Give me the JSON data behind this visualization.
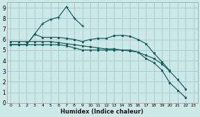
{
  "background_color": "#cce8e8",
  "grid_color": "#aacccc",
  "line_color": "#1a6060",
  "xlabel": "Humidex (Indice chaleur)",
  "xlim": [
    -0.5,
    23.5
  ],
  "ylim": [
    0,
    9.5
  ],
  "xticks": [
    0,
    1,
    2,
    3,
    4,
    5,
    6,
    7,
    8,
    9,
    10,
    11,
    12,
    13,
    14,
    15,
    16,
    17,
    18,
    19,
    20,
    21,
    22,
    23
  ],
  "yticks": [
    0,
    1,
    2,
    3,
    4,
    5,
    6,
    7,
    8,
    9
  ],
  "series": [
    {
      "x": [
        0,
        1,
        2,
        3,
        4,
        5,
        6,
        7,
        8,
        9,
        10,
        11,
        12,
        13,
        14,
        15,
        16,
        17,
        18,
        19,
        20,
        21,
        22
      ],
      "y": [
        5.8,
        5.8,
        5.8,
        5.8,
        5.8,
        5.8,
        5.7,
        5.6,
        5.5,
        5.4,
        5.3,
        5.2,
        5.1,
        5.1,
        5.0,
        4.9,
        4.8,
        4.5,
        4.2,
        3.7,
        3.0,
        2.2,
        1.3
      ],
      "marker": "s"
    },
    {
      "x": [
        0,
        1,
        2,
        3,
        4,
        5,
        6,
        7,
        8,
        9,
        10,
        11,
        12,
        13,
        14,
        15,
        16,
        17,
        18,
        19,
        20,
        21,
        22,
        23
      ],
      "y": [
        5.5,
        5.5,
        5.5,
        6.5,
        6.2,
        6.2,
        6.2,
        6.1,
        6.0,
        5.8,
        6.0,
        6.1,
        6.1,
        6.35,
        6.4,
        6.3,
        6.0,
        5.6,
        4.7,
        3.9,
        3.05,
        null,
        null,
        null
      ],
      "marker": "s"
    },
    {
      "x": [
        0,
        1,
        2,
        3,
        4,
        5,
        6,
        7,
        8,
        9,
        10
      ],
      "y": [
        5.5,
        5.5,
        5.5,
        6.5,
        7.5,
        7.9,
        8.1,
        9.1,
        8.0,
        7.3,
        null
      ],
      "marker": "+"
    },
    {
      "x": [
        0,
        1,
        2,
        3,
        4,
        5,
        6,
        7,
        8,
        9,
        10,
        11,
        12,
        13,
        14,
        15,
        16,
        17,
        18,
        19,
        20,
        21,
        22,
        23
      ],
      "y": [
        5.5,
        5.5,
        5.5,
        5.5,
        5.5,
        5.5,
        5.5,
        5.4,
        5.2,
        5.0,
        5.0,
        5.0,
        5.0,
        5.0,
        5.0,
        5.0,
        4.8,
        4.2,
        3.8,
        3.1,
        1.9,
        1.2,
        0.5,
        null
      ],
      "marker": "s"
    }
  ]
}
